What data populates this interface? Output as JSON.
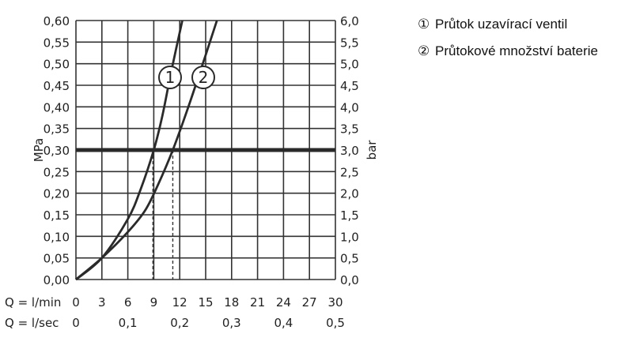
{
  "chart_data": {
    "type": "line",
    "title": "",
    "y_left": {
      "label": "MPa",
      "range": [
        0,
        0.6
      ],
      "ticks": [
        "0,00",
        "0,05",
        "0,10",
        "0,15",
        "0,20",
        "0,25",
        "0,30",
        "0,35",
        "0,40",
        "0,45",
        "0,50",
        "0,55",
        "0,60"
      ]
    },
    "y_right": {
      "label": "bar",
      "range": [
        0,
        6
      ],
      "ticks": [
        "0,0",
        "0,5",
        "1,0",
        "1,5",
        "2,0",
        "2,5",
        "3,0",
        "3,5",
        "4,0",
        "4,5",
        "5,0",
        "5,5",
        "6,0"
      ]
    },
    "x_lmin": {
      "label": "Q = l/min",
      "range": [
        0,
        30
      ],
      "ticks": [
        "0",
        "3",
        "6",
        "9",
        "12",
        "15",
        "18",
        "21",
        "24",
        "27",
        "30"
      ]
    },
    "x_lsec": {
      "label": "Q = l/sec",
      "ticks": [
        {
          "value": 0,
          "label": "0"
        },
        {
          "value": 0.1,
          "label": "0,1"
        },
        {
          "value": 0.2,
          "label": "0,2"
        },
        {
          "value": 0.3,
          "label": "0,3"
        },
        {
          "value": 0.4,
          "label": "0,4"
        },
        {
          "value": 0.5,
          "label": "0,5"
        }
      ]
    },
    "grid": true,
    "reference_line": {
      "y": 0.3,
      "x_at_curve": [
        8.9,
        11.2
      ]
    },
    "series": [
      {
        "marker": "1",
        "x": [
          0,
          3,
          6,
          7.5,
          9,
          10,
          11,
          12.3
        ],
        "y": [
          0,
          0.05,
          0.14,
          0.21,
          0.3,
          0.38,
          0.48,
          0.6
        ]
      },
      {
        "marker": "2",
        "x": [
          0,
          3,
          6,
          8,
          9.5,
          11.2,
          13,
          15,
          16.3
        ],
        "y": [
          0,
          0.05,
          0.11,
          0.16,
          0.22,
          0.3,
          0.4,
          0.52,
          0.6
        ]
      }
    ],
    "legend": [
      {
        "marker": "①",
        "text": "Průtok uzavírací ventil"
      },
      {
        "marker": "②",
        "text": "Průtokové množství baterie"
      }
    ]
  }
}
